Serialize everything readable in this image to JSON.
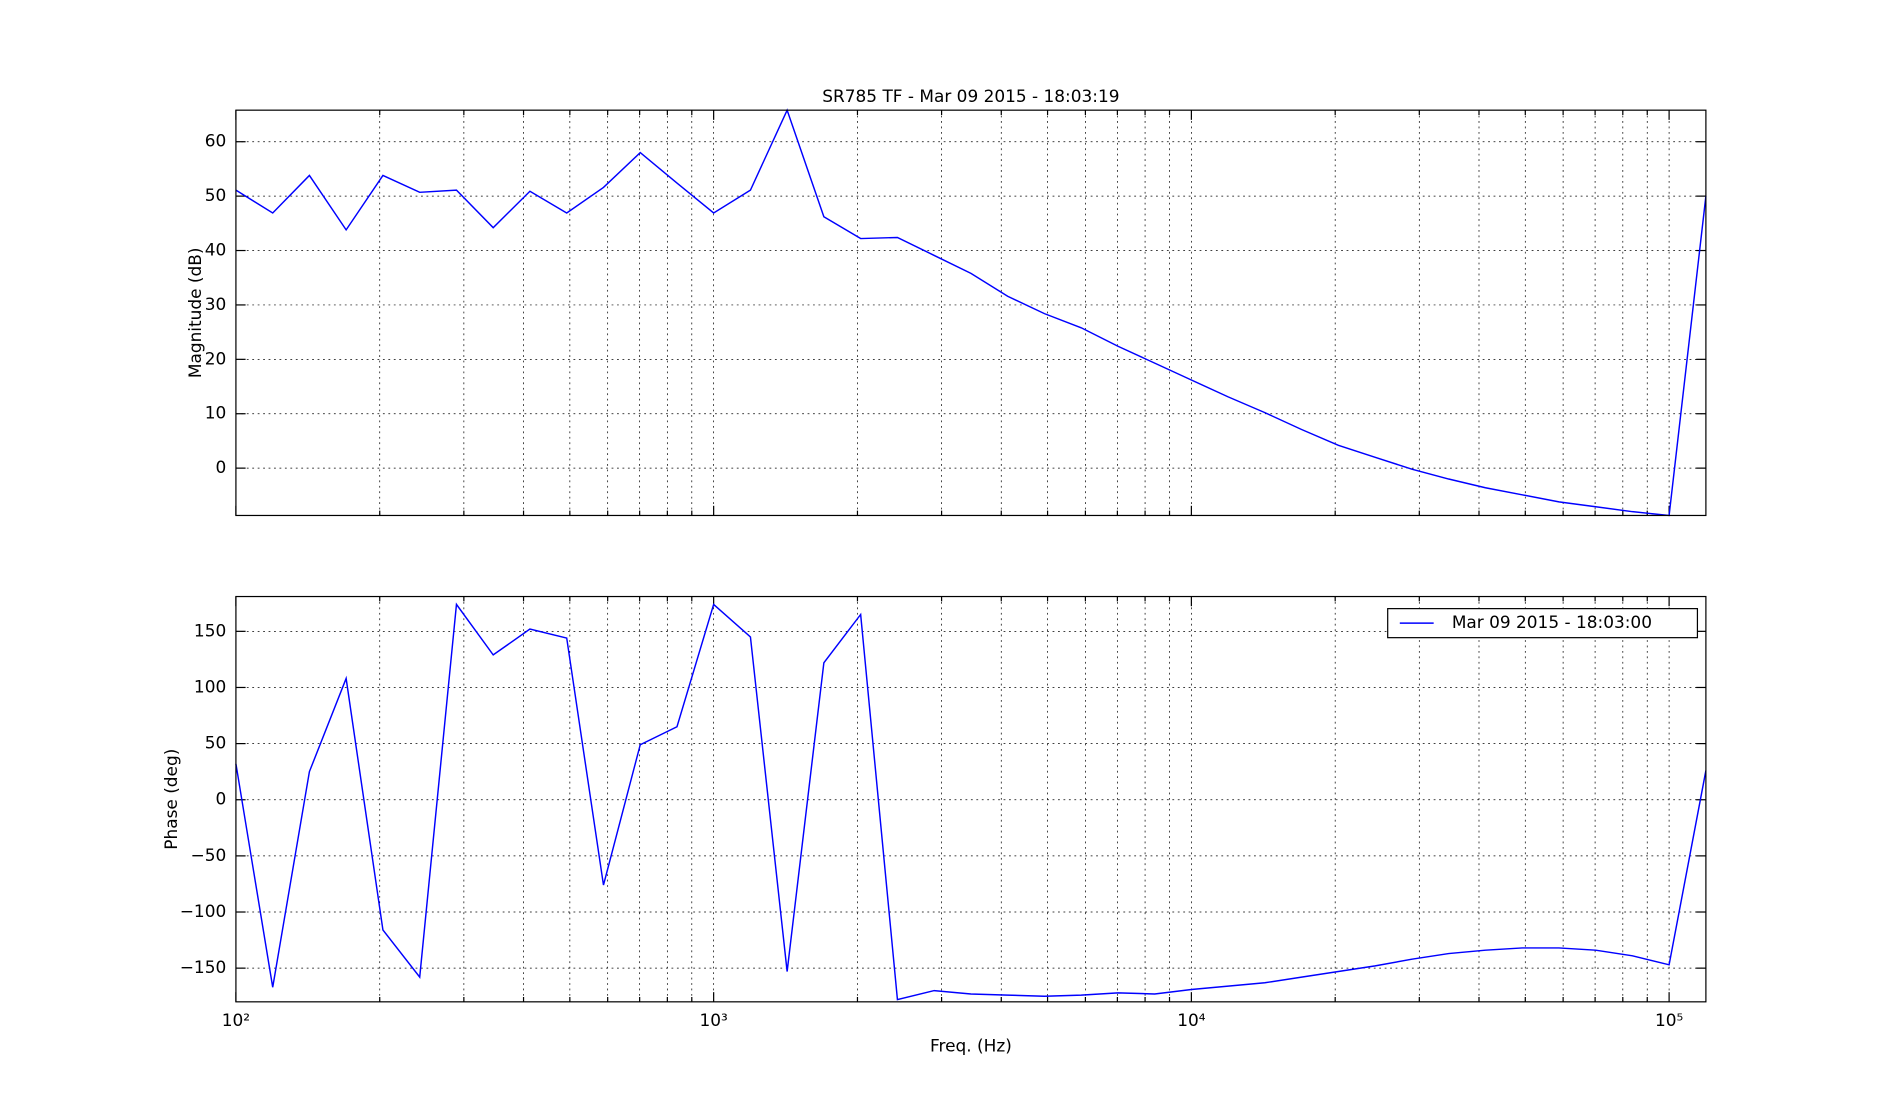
{
  "chart_data": [
    {
      "type": "line",
      "title": "SR785 TF - Mar 09 2015 - 18:03:19",
      "ylabel": "Magnitude (dB)",
      "log_x": true,
      "grid": true,
      "x": [
        100,
        119.4,
        142.5,
        170.1,
        203.1,
        242.5,
        289.5,
        345.6,
        412.5,
        492.5,
        588,
        702,
        838,
        1000,
        1194,
        1425,
        1701,
        2031,
        2425,
        2895,
        3456,
        4125,
        4925,
        5880,
        7020,
        8380,
        10000,
        11940,
        14250,
        17010,
        20310,
        24250,
        28950,
        34560,
        41250,
        49250,
        58800,
        70200,
        83800,
        100000,
        119400
      ],
      "series": [
        {
          "color": "#0000ff",
          "values": [
            51.1,
            46.9,
            53.8,
            43.8,
            53.8,
            50.7,
            51.1,
            44.2,
            50.9,
            46.9,
            51.6,
            58,
            52.4,
            46.9,
            51.1,
            65.8,
            46.2,
            42.2,
            42.4,
            39.1,
            35.8,
            31.6,
            28.4,
            25.8,
            22.4,
            19.3,
            16.2,
            13.1,
            10.2,
            7.1,
            4.2,
            2.0,
            -0.2,
            -2.0,
            -3.6,
            -4.9,
            -6.2,
            -7.1,
            -8.0,
            -8.7,
            50.0
          ]
        }
      ],
      "xlim": [
        100,
        119400
      ],
      "xticks": [
        100,
        1000,
        10000,
        100000
      ],
      "xminorticks": [
        200,
        300,
        400,
        500,
        600,
        700,
        800,
        900,
        2000,
        3000,
        4000,
        5000,
        6000,
        7000,
        8000,
        9000,
        20000,
        30000,
        40000,
        50000,
        60000,
        70000,
        80000,
        90000
      ],
      "ylim": [
        -8.7,
        65.8
      ],
      "yticks": [
        0,
        10,
        20,
        30,
        40,
        50,
        60
      ]
    },
    {
      "type": "line",
      "xlabel": "Freq. (Hz)",
      "ylabel": "Phase (deg)",
      "log_x": true,
      "grid": true,
      "legend": "upper right",
      "x": [
        100,
        119.4,
        142.5,
        170.1,
        203.1,
        242.5,
        289.5,
        345.6,
        412.5,
        492.5,
        588,
        702,
        838,
        1000,
        1194,
        1425,
        1701,
        2031,
        2425,
        2895,
        3456,
        4125,
        4925,
        5880,
        7020,
        8380,
        10000,
        11940,
        14250,
        17010,
        20310,
        24250,
        28950,
        34560,
        41250,
        49250,
        58800,
        70200,
        83800,
        100000,
        119400
      ],
      "series": [
        {
          "name": "Mar 09 2015 - 18:03:00",
          "color": "#0000ff",
          "values": [
            32,
            -167,
            25,
            108,
            -116,
            -158,
            174,
            129,
            152,
            144,
            -76,
            49,
            65,
            174,
            145,
            -153,
            122,
            165,
            -178,
            -170,
            -173,
            -174,
            -175,
            -174,
            -172,
            -173,
            -169,
            -166,
            -163,
            -158,
            -153,
            -148,
            -142,
            -137,
            -134,
            -132,
            -132,
            -134,
            -139,
            -147,
            26
          ]
        }
      ],
      "xlim": [
        100,
        119400
      ],
      "xticks": [
        {
          "value": 100,
          "label": "10²"
        },
        {
          "value": 1000,
          "label": "10³"
        },
        {
          "value": 10000,
          "label": "10⁴"
        },
        {
          "value": 100000,
          "label": "10⁵"
        }
      ],
      "xminorticks": [
        200,
        300,
        400,
        500,
        600,
        700,
        800,
        900,
        2000,
        3000,
        4000,
        5000,
        6000,
        7000,
        8000,
        9000,
        20000,
        30000,
        40000,
        50000,
        60000,
        70000,
        80000,
        90000
      ],
      "ylim": [
        -180,
        181
      ],
      "yticks": [
        {
          "value": -150,
          "label": "−150"
        },
        {
          "value": -100,
          "label": "−100"
        },
        {
          "value": -50,
          "label": "−50"
        },
        0,
        50,
        100,
        150
      ]
    }
  ]
}
